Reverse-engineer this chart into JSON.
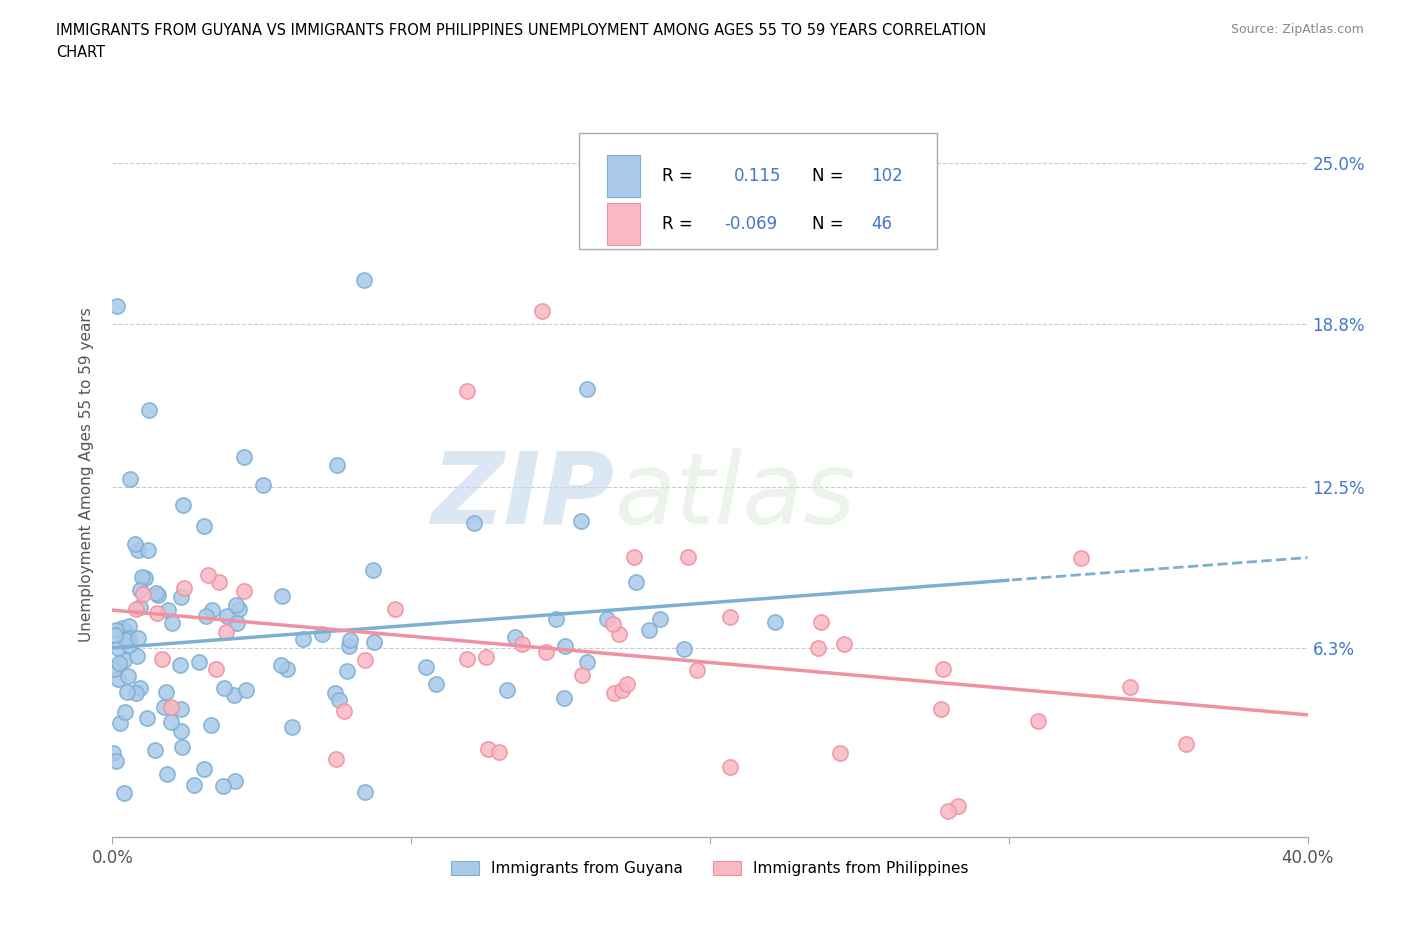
{
  "title_line1": "IMMIGRANTS FROM GUYANA VS IMMIGRANTS FROM PHILIPPINES UNEMPLOYMENT AMONG AGES 55 TO 59 YEARS CORRELATION",
  "title_line2": "CHART",
  "source": "Source: ZipAtlas.com",
  "ylabel": "Unemployment Among Ages 55 to 59 years",
  "xlim": [
    0.0,
    0.4
  ],
  "ylim": [
    -0.01,
    0.27
  ],
  "xtick_positions": [
    0.0,
    0.1,
    0.2,
    0.3,
    0.4
  ],
  "xticklabels_shown": {
    "0.0": "0.0%",
    "0.4": "40.0%"
  },
  "ytick_positions": [
    0.063,
    0.125,
    0.188,
    0.25
  ],
  "ytick_labels": [
    "6.3%",
    "12.5%",
    "18.8%",
    "25.0%"
  ],
  "grid_color": "#cccccc",
  "blue_color": "#7bafd4",
  "blue_fill": "#aac9e8",
  "pink_color": "#f090a0",
  "pink_fill": "#f8b8c4",
  "stat_color": "#4477cc",
  "R_blue": 0.115,
  "N_blue": 102,
  "R_pink": -0.069,
  "N_pink": 46,
  "legend_entries": [
    "Immigrants from Guyana",
    "Immigrants from Philippines"
  ],
  "watermark_zip": "ZIP",
  "watermark_atlas": "atlas",
  "blue_seed": 42,
  "pink_seed": 123
}
